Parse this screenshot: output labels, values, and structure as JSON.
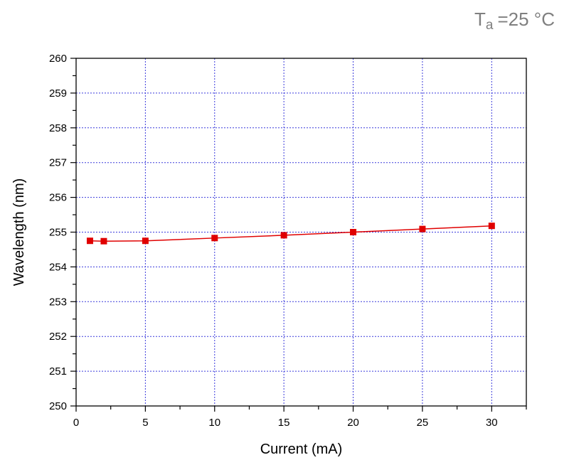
{
  "condition": {
    "symbol": "T",
    "subscript": "a",
    "value": "=25 °C"
  },
  "chart_data": {
    "type": "line",
    "title": "",
    "xlabel": "Current (mA)",
    "ylabel": "Wavelength (nm)",
    "xlim": [
      0,
      32.5
    ],
    "ylim": [
      250,
      260
    ],
    "xticks": [
      0,
      5,
      10,
      15,
      20,
      25,
      30
    ],
    "yticks": [
      250,
      251,
      252,
      253,
      254,
      255,
      256,
      257,
      258,
      259,
      260
    ],
    "grid": true,
    "series": [
      {
        "color": "#e00000",
        "x": [
          1,
          2,
          5,
          10,
          15,
          20,
          25,
          30
        ],
        "y": [
          254.75,
          254.74,
          254.75,
          254.83,
          254.91,
          255.0,
          255.09,
          255.18
        ]
      }
    ]
  }
}
